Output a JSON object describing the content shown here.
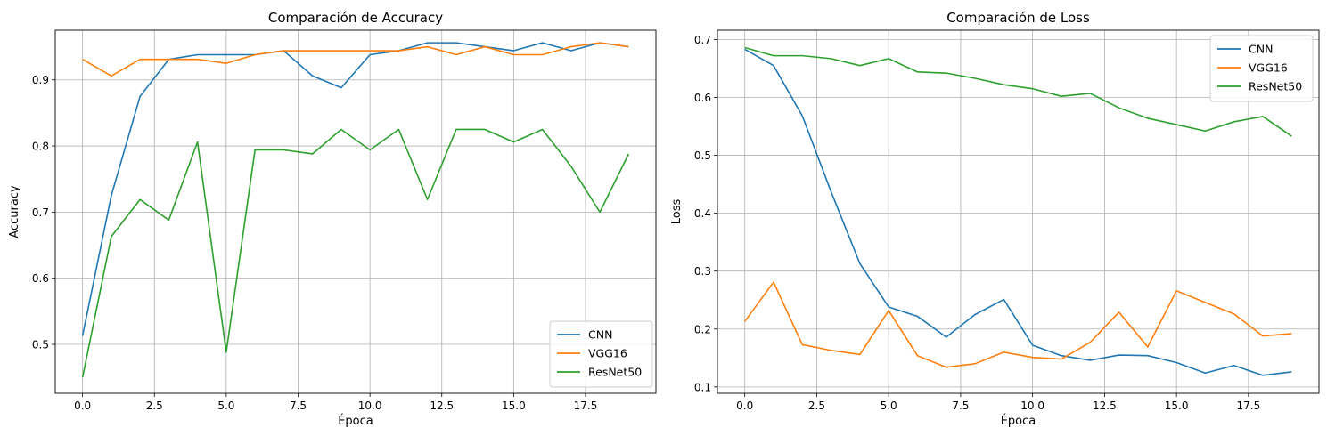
{
  "chart_data": [
    {
      "type": "line",
      "title": "Comparación de Accuracy",
      "xlabel": "Época",
      "ylabel": "Accuracy",
      "xlim": [
        -0.95,
        19.95
      ],
      "ylim": [
        0.426,
        0.975
      ],
      "xticks": [
        0.0,
        2.5,
        5.0,
        7.5,
        10.0,
        12.5,
        15.0,
        17.5
      ],
      "xtick_labels": [
        "0.0",
        "2.5",
        "5.0",
        "7.5",
        "10.0",
        "12.5",
        "15.0",
        "17.5"
      ],
      "yticks": [
        0.5,
        0.6,
        0.7,
        0.8,
        0.9
      ],
      "ytick_labels": [
        "0.5",
        "0.6",
        "0.7",
        "0.8",
        "0.9"
      ],
      "grid": true,
      "legend_position": "lower-right",
      "x": [
        0,
        1,
        2,
        3,
        4,
        5,
        6,
        7,
        8,
        9,
        10,
        11,
        12,
        13,
        14,
        15,
        16,
        17,
        18,
        19
      ],
      "series": [
        {
          "name": "CNN",
          "color": "#1f77b4",
          "values": [
            0.513,
            0.725,
            0.875,
            0.931,
            0.938,
            0.938,
            0.938,
            0.944,
            0.906,
            0.888,
            0.938,
            0.944,
            0.956,
            0.956,
            0.95,
            0.944,
            0.956,
            0.944,
            0.956,
            0.95
          ]
        },
        {
          "name": "VGG16",
          "color": "#ff7f0e",
          "values": [
            0.931,
            0.906,
            0.931,
            0.931,
            0.931,
            0.925,
            0.938,
            0.944,
            0.944,
            0.944,
            0.944,
            0.944,
            0.95,
            0.938,
            0.95,
            0.938,
            0.938,
            0.95,
            0.956,
            0.95
          ]
        },
        {
          "name": "ResNet50",
          "color": "#2ca02c",
          "values": [
            0.45,
            0.663,
            0.719,
            0.688,
            0.806,
            0.488,
            0.794,
            0.794,
            0.788,
            0.825,
            0.794,
            0.825,
            0.719,
            0.825,
            0.825,
            0.806,
            0.825,
            0.769,
            0.7,
            0.788
          ]
        }
      ]
    },
    {
      "type": "line",
      "title": "Comparación de Loss",
      "xlabel": "Época",
      "ylabel": "Loss",
      "xlim": [
        -0.95,
        19.95
      ],
      "ylim": [
        0.089,
        0.716
      ],
      "xticks": [
        0.0,
        2.5,
        5.0,
        7.5,
        10.0,
        12.5,
        15.0,
        17.5
      ],
      "xtick_labels": [
        "0.0",
        "2.5",
        "5.0",
        "7.5",
        "10.0",
        "12.5",
        "15.0",
        "17.5"
      ],
      "yticks": [
        0.1,
        0.2,
        0.3,
        0.4,
        0.5,
        0.6,
        0.7
      ],
      "ytick_labels": [
        "0.1",
        "0.2",
        "0.3",
        "0.4",
        "0.5",
        "0.6",
        "0.7"
      ],
      "grid": true,
      "legend_position": "upper-right",
      "x": [
        0,
        1,
        2,
        3,
        4,
        5,
        6,
        7,
        8,
        9,
        10,
        11,
        12,
        13,
        14,
        15,
        16,
        17,
        18,
        19
      ],
      "series": [
        {
          "name": "CNN",
          "color": "#1f77b4",
          "values": [
            0.683,
            0.655,
            0.568,
            0.437,
            0.313,
            0.238,
            0.222,
            0.186,
            0.225,
            0.251,
            0.172,
            0.154,
            0.146,
            0.155,
            0.154,
            0.142,
            0.124,
            0.137,
            0.12,
            0.126
          ]
        },
        {
          "name": "VGG16",
          "color": "#ff7f0e",
          "values": [
            0.213,
            0.281,
            0.173,
            0.163,
            0.156,
            0.232,
            0.154,
            0.134,
            0.14,
            0.16,
            0.151,
            0.148,
            0.177,
            0.229,
            0.169,
            0.266,
            0.246,
            0.226,
            0.188,
            0.192
          ]
        },
        {
          "name": "ResNet50",
          "color": "#2ca02c",
          "values": [
            0.686,
            0.672,
            0.672,
            0.667,
            0.655,
            0.667,
            0.644,
            0.642,
            0.633,
            0.622,
            0.615,
            0.602,
            0.607,
            0.582,
            0.564,
            0.553,
            0.542,
            0.558,
            0.567,
            0.533
          ]
        }
      ]
    }
  ]
}
